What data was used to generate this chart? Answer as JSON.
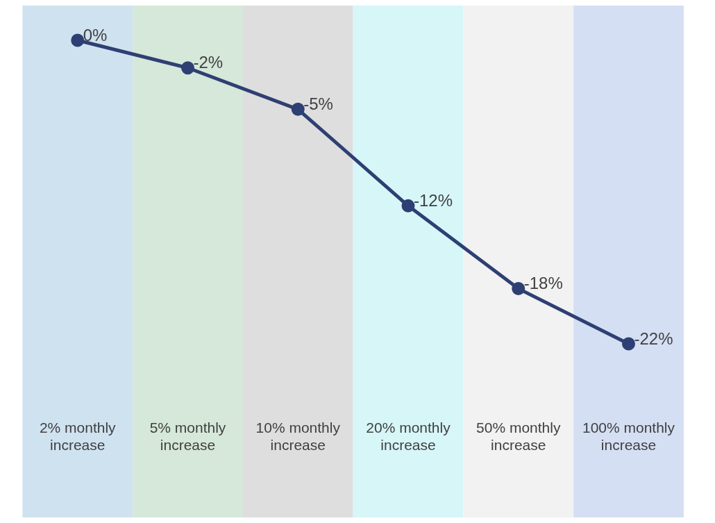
{
  "chart_data": {
    "type": "line",
    "categories": [
      "2% monthly increase",
      "5% monthly increase",
      "10% monthly increase",
      "20% monthly increase",
      "50% monthly increase",
      "100% monthly increase"
    ],
    "series": [
      {
        "color": "#2e3f73",
        "values": [
          0,
          -2,
          -5,
          -12,
          -18,
          -22
        ],
        "value_labels": [
          "0%",
          "-2%",
          "-5%",
          "-12%",
          "-18%",
          "-22%"
        ]
      }
    ],
    "bands": [
      {
        "axis": "x",
        "from": "2% monthly increase",
        "to": "2% monthly increase",
        "color": "#cfe2f0"
      },
      {
        "axis": "x",
        "from": "5% monthly increase",
        "to": "5% monthly increase",
        "color": "#d5e8d9"
      },
      {
        "axis": "x",
        "from": "10% monthly increase",
        "to": "10% monthly increase",
        "color": "#dedede"
      },
      {
        "axis": "x",
        "from": "20% monthly increase",
        "to": "20% monthly increase",
        "color": "#d6f6f8"
      },
      {
        "axis": "x",
        "from": "50% monthly increase",
        "to": "50% monthly increase",
        "color": "#f2f2f2"
      },
      {
        "axis": "x",
        "from": "100% monthly increase",
        "to": "100% monthly increase",
        "color": "#d5dff3"
      }
    ],
    "marker": "circle",
    "line_style": "solid",
    "grid": false,
    "legend": false
  }
}
